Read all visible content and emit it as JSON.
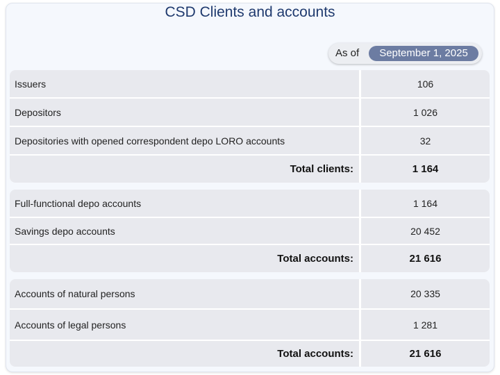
{
  "title": "CSD Clients and accounts",
  "as_of": {
    "label": "As of",
    "date": "September 1, 2025"
  },
  "groups": [
    {
      "rows": [
        {
          "label": "Issuers",
          "value": "106"
        },
        {
          "label": "Depositors",
          "value": "1 026"
        },
        {
          "label": "Depositories with opened correspondent depo LORO accounts",
          "value": "32"
        }
      ],
      "total": {
        "label": "Total clients:",
        "value": "1 164"
      }
    },
    {
      "rows": [
        {
          "label": "Full-functional depo accounts",
          "value": "1 164"
        },
        {
          "label": "Savings depo accounts",
          "value": "20 452"
        }
      ],
      "total": {
        "label": "Total accounts:",
        "value": "21 616"
      }
    },
    {
      "rows": [
        {
          "label": "Accounts of natural persons",
          "value": "20 335"
        },
        {
          "label": "Accounts of legal persons",
          "value": "1 281"
        }
      ],
      "total": {
        "label": "Total accounts:",
        "value": "21 616"
      }
    }
  ]
}
